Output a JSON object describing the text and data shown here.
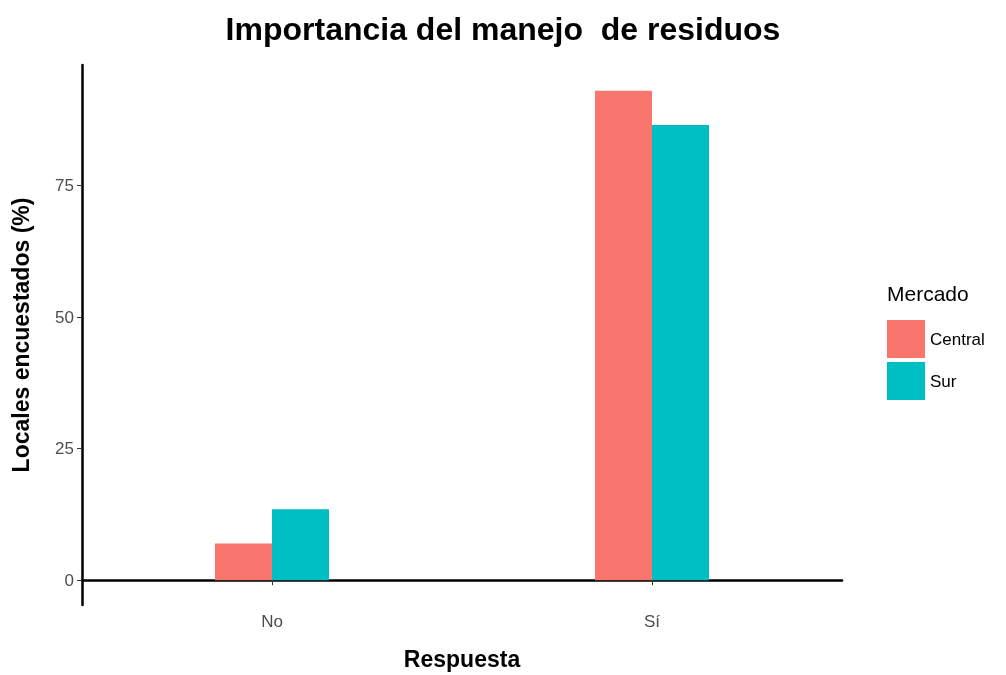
{
  "chart_data": {
    "type": "bar",
    "title": "Importancia del manejo  de residuos",
    "xlabel": "Respuesta",
    "ylabel": "Locales encuestados (%)",
    "legend_title": "Mercado",
    "categories": [
      "No",
      "Sí"
    ],
    "series": [
      {
        "name": "Central",
        "color": "#f8766d",
        "values": [
          7,
          93
        ]
      },
      {
        "name": "Sur",
        "color": "#00bfc4",
        "values": [
          13.5,
          86.5
        ]
      }
    ],
    "ylim": [
      -4.7,
      97.9
    ],
    "yticks": [
      0,
      25,
      50,
      75
    ],
    "grid": false,
    "legend": "right"
  }
}
